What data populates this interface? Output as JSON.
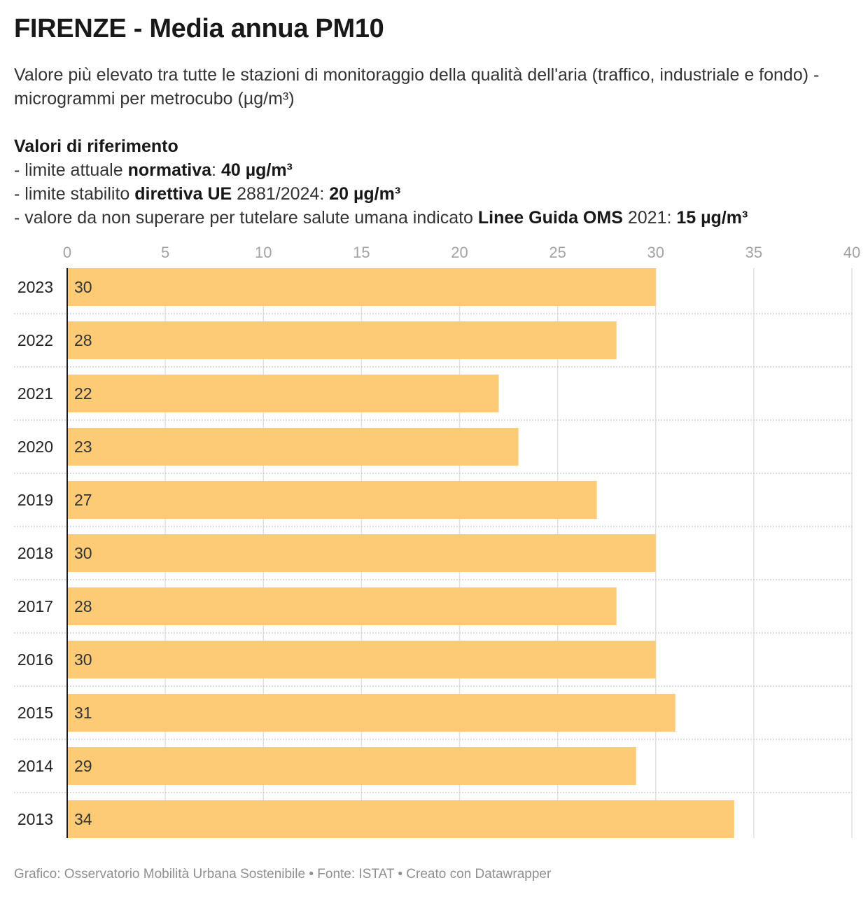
{
  "title": "FIRENZE - Media annua PM10",
  "subtitle": "Valore più elevato tra tutte le stazioni di monitoraggio della qualità dell'aria (traffico, industriale e fondo) - microgrammi per metrocubo (µg/m³)",
  "references": {
    "heading": "Valori di riferimento",
    "line1": {
      "prefix": "- limite attuale ",
      "bold": "normativa",
      "mid": ": ",
      "value": "40 µg/m³"
    },
    "line2": {
      "prefix": "- limite stabilito ",
      "bold": "direttiva UE",
      "mid": " 2881/2024: ",
      "value": "20 µg/m³"
    },
    "line3": {
      "prefix": "- valore da non superare per tutelare salute umana indicato ",
      "bold": "Linee Guida OMS",
      "mid": " 2021: ",
      "value": "15 µg/m³"
    }
  },
  "footer": "Grafico: Osservatorio Mobilità Urbana Sostenibile • Fonte: ISTAT • Creato con Datawrapper",
  "colors": {
    "bar": "#fdca75",
    "grid": "#e0e0e0",
    "axis": "#1a1a1a",
    "tick_label": "#a3a3a3"
  },
  "chart_data": {
    "type": "bar",
    "orientation": "horizontal",
    "categories": [
      "2023",
      "2022",
      "2021",
      "2020",
      "2019",
      "2018",
      "2017",
      "2016",
      "2015",
      "2014",
      "2013"
    ],
    "values": [
      30,
      28,
      22,
      23,
      27,
      30,
      28,
      30,
      31,
      29,
      34
    ],
    "xlim": [
      0,
      40
    ],
    "xticks": [
      0,
      5,
      10,
      15,
      20,
      25,
      30,
      35,
      40
    ],
    "x_axis_position": "top",
    "grid": true
  }
}
